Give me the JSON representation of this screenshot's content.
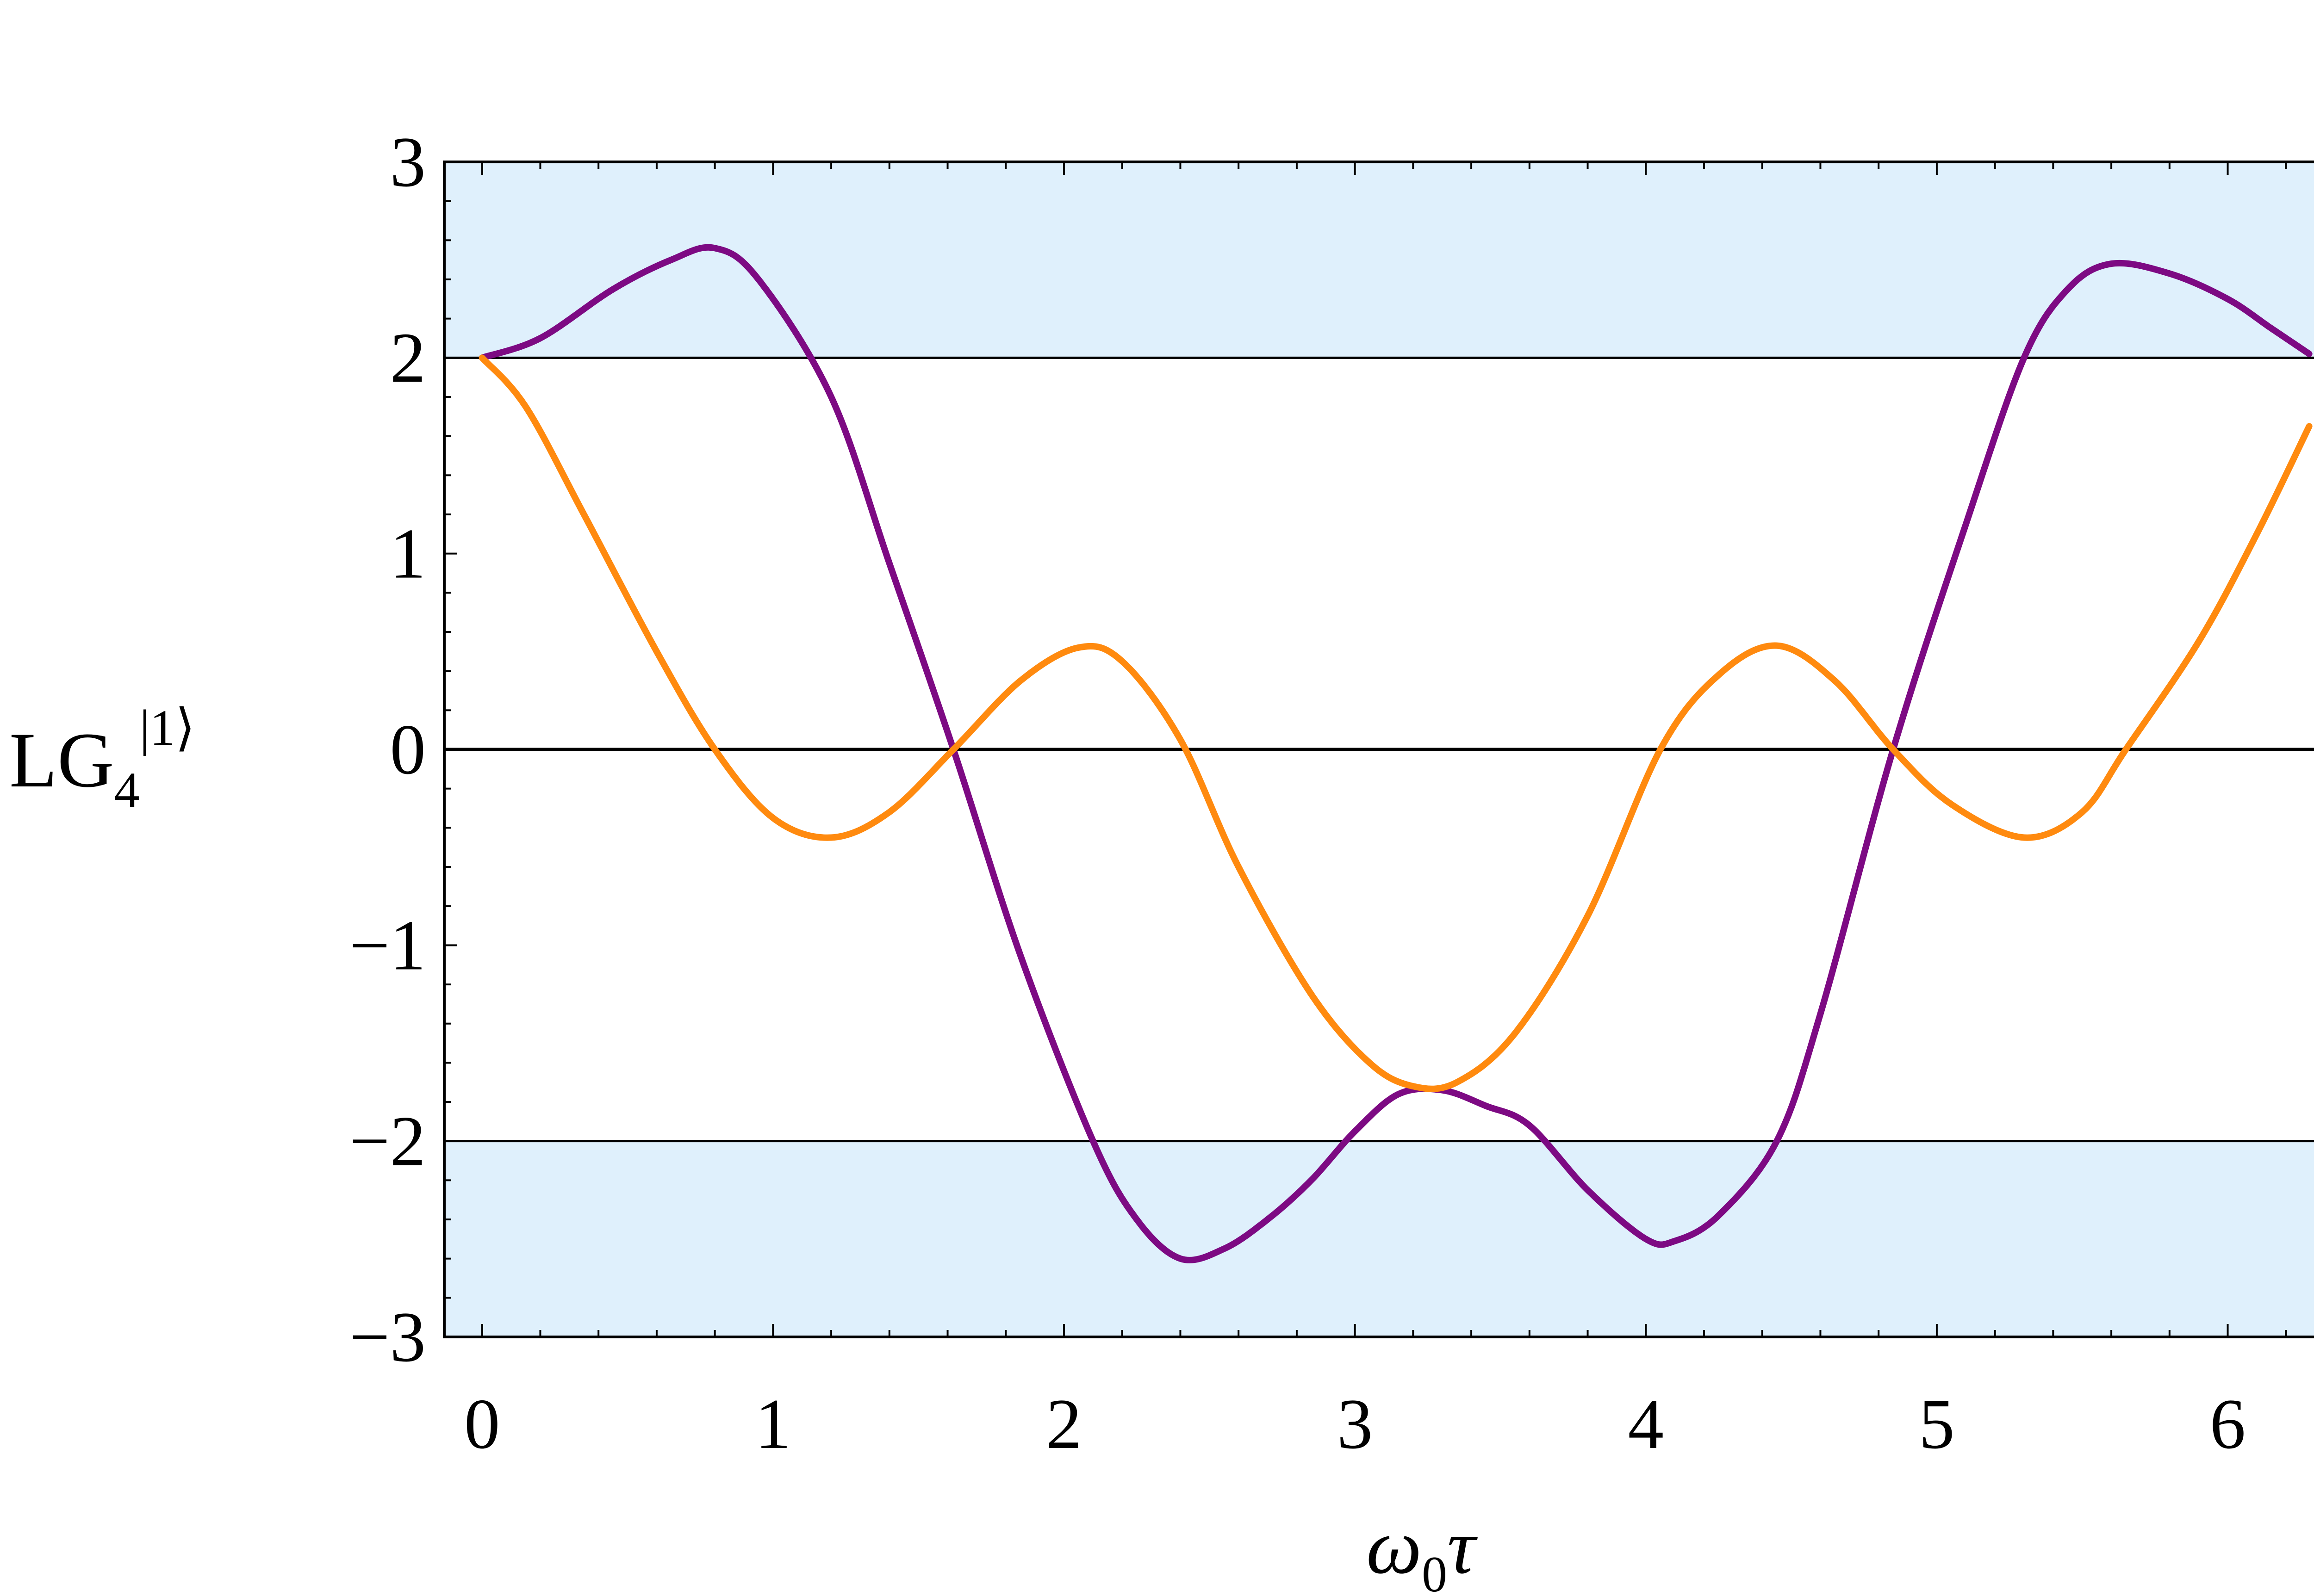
{
  "chart_data": {
    "type": "line",
    "title": "",
    "xlabel": "ω0τ",
    "ylabel": "LG4|1⟩",
    "xlim": [
      -0.13,
      6.4
    ],
    "ylim": [
      -3,
      3
    ],
    "x_ticks": [
      0,
      1,
      2,
      3,
      4,
      5,
      6
    ],
    "y_ticks": [
      3,
      2,
      1,
      0,
      -1,
      -2,
      -3
    ],
    "x_tick_labels": [
      "0",
      "1",
      "2",
      "3",
      "4",
      "5",
      "6"
    ],
    "y_tick_labels": [
      "3",
      "2",
      "1",
      "0",
      "−1",
      "−2",
      "−3"
    ],
    "grid": false,
    "legend": "none",
    "shaded_bands": [
      {
        "ymin": 2,
        "ymax": 3,
        "color": "#dff0fc"
      },
      {
        "ymin": -3,
        "ymax": -2,
        "color": "#dff0fc"
      }
    ],
    "reference_lines": [
      2,
      0,
      -2
    ],
    "series": [
      {
        "color": "#7d0a83",
        "points": [
          [
            0,
            2.0
          ],
          [
            0.2,
            2.1
          ],
          [
            0.45,
            2.35
          ],
          [
            0.65,
            2.5
          ],
          [
            0.8,
            2.56
          ],
          [
            0.95,
            2.4
          ],
          [
            1.2,
            1.8
          ],
          [
            1.4,
            0.95
          ],
          [
            1.62,
            0.0
          ],
          [
            1.85,
            -1.05
          ],
          [
            2.1,
            -2.0
          ],
          [
            2.25,
            -2.4
          ],
          [
            2.4,
            -2.6
          ],
          [
            2.55,
            -2.55
          ],
          [
            2.7,
            -2.4
          ],
          [
            2.85,
            -2.2
          ],
          [
            3.0,
            -1.95
          ],
          [
            3.15,
            -1.76
          ],
          [
            3.3,
            -1.74
          ],
          [
            3.45,
            -1.82
          ],
          [
            3.6,
            -1.92
          ],
          [
            3.8,
            -2.25
          ],
          [
            4.0,
            -2.5
          ],
          [
            4.1,
            -2.51
          ],
          [
            4.25,
            -2.38
          ],
          [
            4.45,
            -2.0
          ],
          [
            4.6,
            -1.35
          ],
          [
            4.85,
            0.0
          ],
          [
            5.1,
            1.15
          ],
          [
            5.3,
            2.0
          ],
          [
            5.45,
            2.35
          ],
          [
            5.6,
            2.48
          ],
          [
            5.8,
            2.43
          ],
          [
            6.0,
            2.3
          ],
          [
            6.15,
            2.15
          ],
          [
            6.28,
            2.02
          ]
        ]
      },
      {
        "color": "#ff8a0f",
        "points": [
          [
            0,
            2.0
          ],
          [
            0.15,
            1.75
          ],
          [
            0.35,
            1.2
          ],
          [
            0.6,
            0.5
          ],
          [
            0.8,
            0.0
          ],
          [
            1.0,
            -0.35
          ],
          [
            1.2,
            -0.45
          ],
          [
            1.4,
            -0.32
          ],
          [
            1.62,
            0.0
          ],
          [
            1.85,
            0.35
          ],
          [
            2.05,
            0.52
          ],
          [
            2.2,
            0.45
          ],
          [
            2.4,
            0.05
          ],
          [
            2.6,
            -0.6
          ],
          [
            2.85,
            -1.25
          ],
          [
            3.05,
            -1.6
          ],
          [
            3.2,
            -1.72
          ],
          [
            3.35,
            -1.7
          ],
          [
            3.55,
            -1.45
          ],
          [
            3.8,
            -0.85
          ],
          [
            4.05,
            0.0
          ],
          [
            4.25,
            0.38
          ],
          [
            4.45,
            0.53
          ],
          [
            4.65,
            0.35
          ],
          [
            4.85,
            0.0
          ],
          [
            5.05,
            -0.28
          ],
          [
            5.3,
            -0.45
          ],
          [
            5.5,
            -0.32
          ],
          [
            5.65,
            0.0
          ],
          [
            5.9,
            0.55
          ],
          [
            6.1,
            1.1
          ],
          [
            6.28,
            1.65
          ]
        ]
      }
    ]
  }
}
